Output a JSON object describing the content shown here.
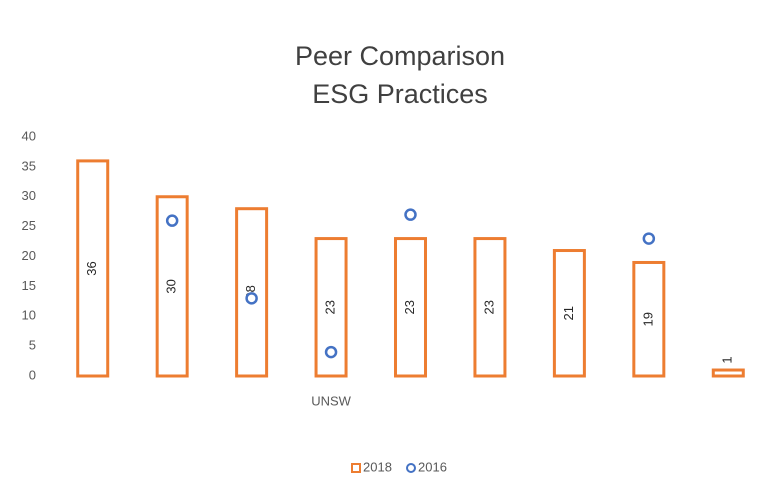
{
  "chart_data": {
    "type": "bar",
    "title": "Peer Comparison",
    "subtitle": "ESG Practices",
    "categories": [
      null,
      null,
      null,
      "UNSW",
      null,
      null,
      null,
      null,
      null
    ],
    "series": [
      {
        "name": "2018",
        "color": "#ed7d31",
        "values": [
          36,
          30,
          28,
          23,
          23,
          23,
          21,
          19,
          1
        ]
      },
      {
        "name": "2016",
        "color": "#4472c4",
        "values": [
          null,
          26,
          13,
          4,
          27,
          null,
          null,
          23,
          null
        ]
      }
    ],
    "ylim": [
      0,
      40
    ],
    "yticks": [
      0,
      5,
      10,
      15,
      20,
      25,
      30,
      35,
      40
    ],
    "grid": false,
    "legend": "bottom"
  }
}
